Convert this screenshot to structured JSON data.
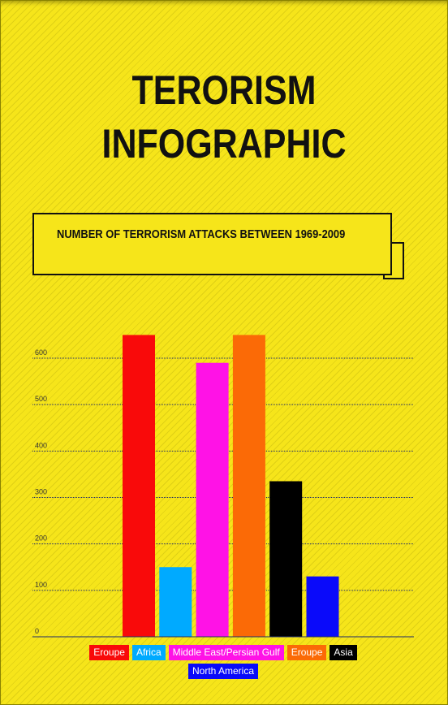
{
  "header": {
    "title_line1": "TERORISM",
    "title_line2": "INFOGRAPHIC"
  },
  "banner": {
    "text": "NUMBER OF TERRORISM ATTACKS BETWEEN 1969-2009"
  },
  "chart_data": {
    "type": "bar",
    "title": "NUMBER OF TERRORISM ATTACKS BETWEEN 1969-2009",
    "categories": [
      "Eroupe",
      "Africa",
      "Middle East/Persian Gulf",
      "Eroupe",
      "Asia",
      "North America"
    ],
    "values": [
      650,
      150,
      590,
      650,
      335,
      130
    ],
    "colors": [
      "#f90a0a",
      "#00aaff",
      "#ff12e6",
      "#fb6a06",
      "#000000",
      "#0a0afa"
    ],
    "yticks": [
      0,
      100,
      200,
      300,
      400,
      500,
      600
    ],
    "ylim": [
      0,
      600
    ],
    "grid": true,
    "legend_position": "bottom"
  }
}
